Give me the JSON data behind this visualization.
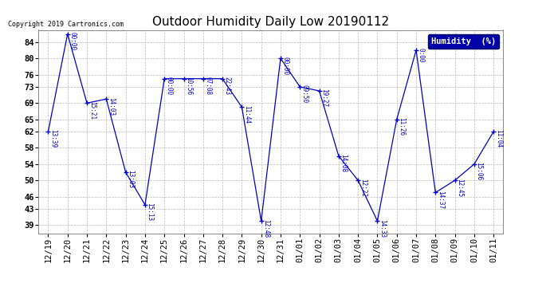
{
  "title": "Outdoor Humidity Daily Low 20190112",
  "copyright": "Copyright 2019 Cartronics.com",
  "legend_label": "Humidity  (%)",
  "x_labels": [
    "12/19",
    "12/20",
    "12/21",
    "12/22",
    "12/23",
    "12/24",
    "12/25",
    "12/26",
    "12/27",
    "12/28",
    "12/29",
    "12/30",
    "12/31",
    "01/01",
    "01/02",
    "01/03",
    "01/04",
    "01/05",
    "01/06",
    "01/07",
    "01/08",
    "01/09",
    "01/10",
    "01/11"
  ],
  "y_values": [
    62,
    86,
    69,
    70,
    52,
    44,
    75,
    75,
    75,
    75,
    68,
    40,
    80,
    73,
    72,
    56,
    50,
    40,
    65,
    82,
    47,
    50,
    54,
    62
  ],
  "time_labels": [
    "13:39",
    "00:00",
    "15:21",
    "14:03",
    "13:03",
    "15:13",
    "00:00",
    "10:56",
    "07:08",
    "22:43",
    "11:44",
    "12:48",
    "00:00",
    "09:50",
    "19:27",
    "14:08",
    "12:22",
    "14:33",
    "11:26",
    "0:00",
    "14:37",
    "12:45",
    "15:06",
    "11:04"
  ],
  "y_ticks": [
    39,
    43,
    46,
    50,
    54,
    58,
    62,
    65,
    69,
    73,
    76,
    80,
    84
  ],
  "y_min": 37,
  "y_max": 87,
  "line_color": "#0000CC",
  "marker_color": "#0000CC",
  "grid_color": "#BBBBBB",
  "bg_color": "#FFFFFF",
  "title_fontsize": 11,
  "tick_fontsize": 7.5,
  "legend_bg": "#0000AA",
  "legend_fg": "#FFFFFF"
}
